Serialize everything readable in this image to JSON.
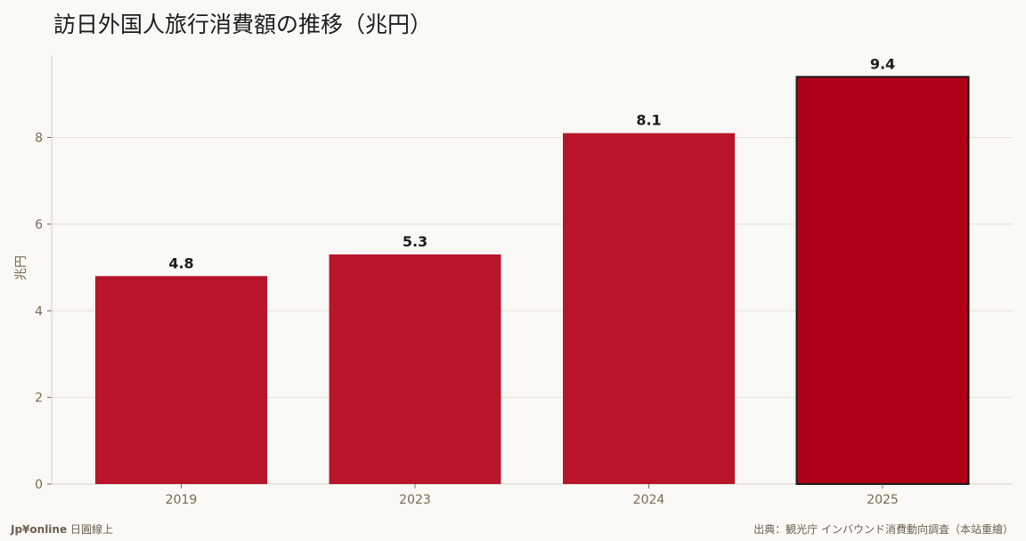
{
  "title": "訪日外国人旅行消費額の推移（兆円）",
  "footer": {
    "brand": "Jp¥online",
    "brand_tagline": "日圓線上",
    "source": "出典：観光庁 インバウンド消費動向調査（本站重繪）"
  },
  "colors": {
    "bar": "#b8152b",
    "bar_highlight": "#b00018",
    "highlight_border": "#1a1a1a",
    "axis_text": "#7a6a55",
    "grid": "#e4dfd6",
    "label_text": "#1c1c1c"
  },
  "chart_data": {
    "type": "bar",
    "title": "訪日外国人旅行消費額の推移（兆円）",
    "xlabel": "",
    "ylabel": "兆円",
    "categories": [
      "2019",
      "2023",
      "2024",
      "2025"
    ],
    "values": [
      4.8,
      5.3,
      8.1,
      9.4
    ],
    "data_labels": [
      "4.8",
      "5.3",
      "8.1",
      "9.4"
    ],
    "highlight_index": 3,
    "ylim": [
      0,
      9.9
    ],
    "yticks": [
      0,
      2,
      4,
      6,
      8
    ],
    "ytick_labels": [
      "0",
      "2",
      "4",
      "6",
      "8"
    ],
    "grid": true,
    "legend": "none"
  }
}
